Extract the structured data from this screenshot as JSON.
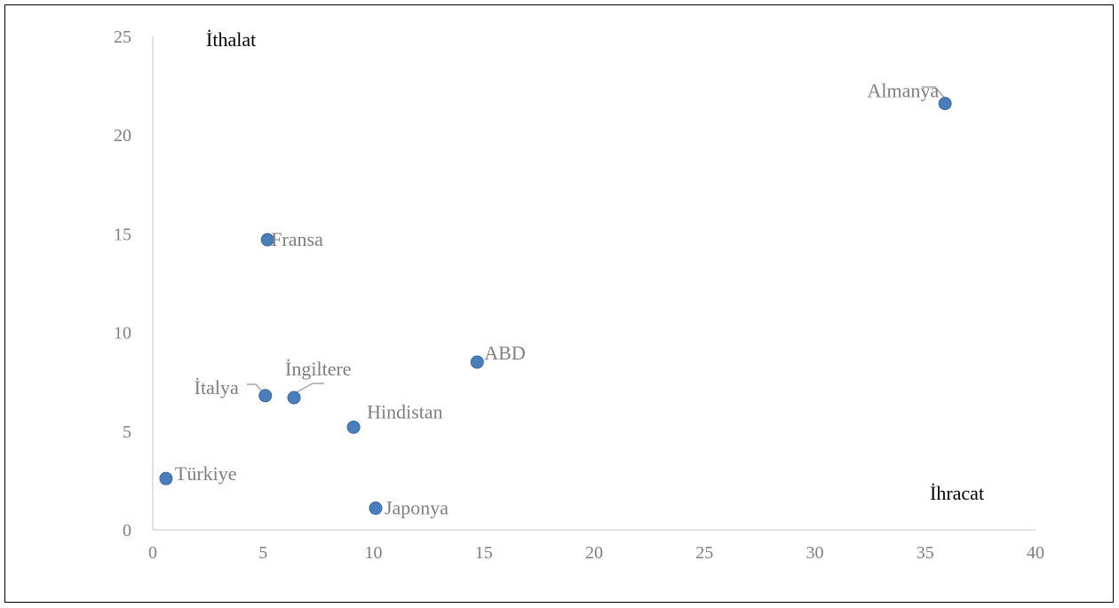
{
  "chart_data": {
    "type": "scatter",
    "xlabel": "İhracat",
    "ylabel": "İthalat",
    "xlim": [
      0,
      40
    ],
    "ylim": [
      0,
      25
    ],
    "x_ticks": [
      0,
      5,
      10,
      15,
      20,
      25,
      30,
      35,
      40
    ],
    "y_ticks": [
      0,
      5,
      10,
      15,
      20,
      25
    ],
    "grid": false,
    "marker_color": "#4a7ebb",
    "points": [
      {
        "label": "Almanya",
        "x": 35.9,
        "y": 21.6
      },
      {
        "label": "Fransa",
        "x": 5.2,
        "y": 14.7
      },
      {
        "label": "ABD",
        "x": 14.7,
        "y": 8.5
      },
      {
        "label": "İngiltere",
        "x": 6.4,
        "y": 6.7
      },
      {
        "label": "İtalya",
        "x": 5.1,
        "y": 6.8
      },
      {
        "label": "Hindistan",
        "x": 9.1,
        "y": 5.2
      },
      {
        "label": "Türkiye",
        "x": 0.6,
        "y": 2.6
      },
      {
        "label": "Japonya",
        "x": 10.1,
        "y": 1.1
      }
    ]
  }
}
